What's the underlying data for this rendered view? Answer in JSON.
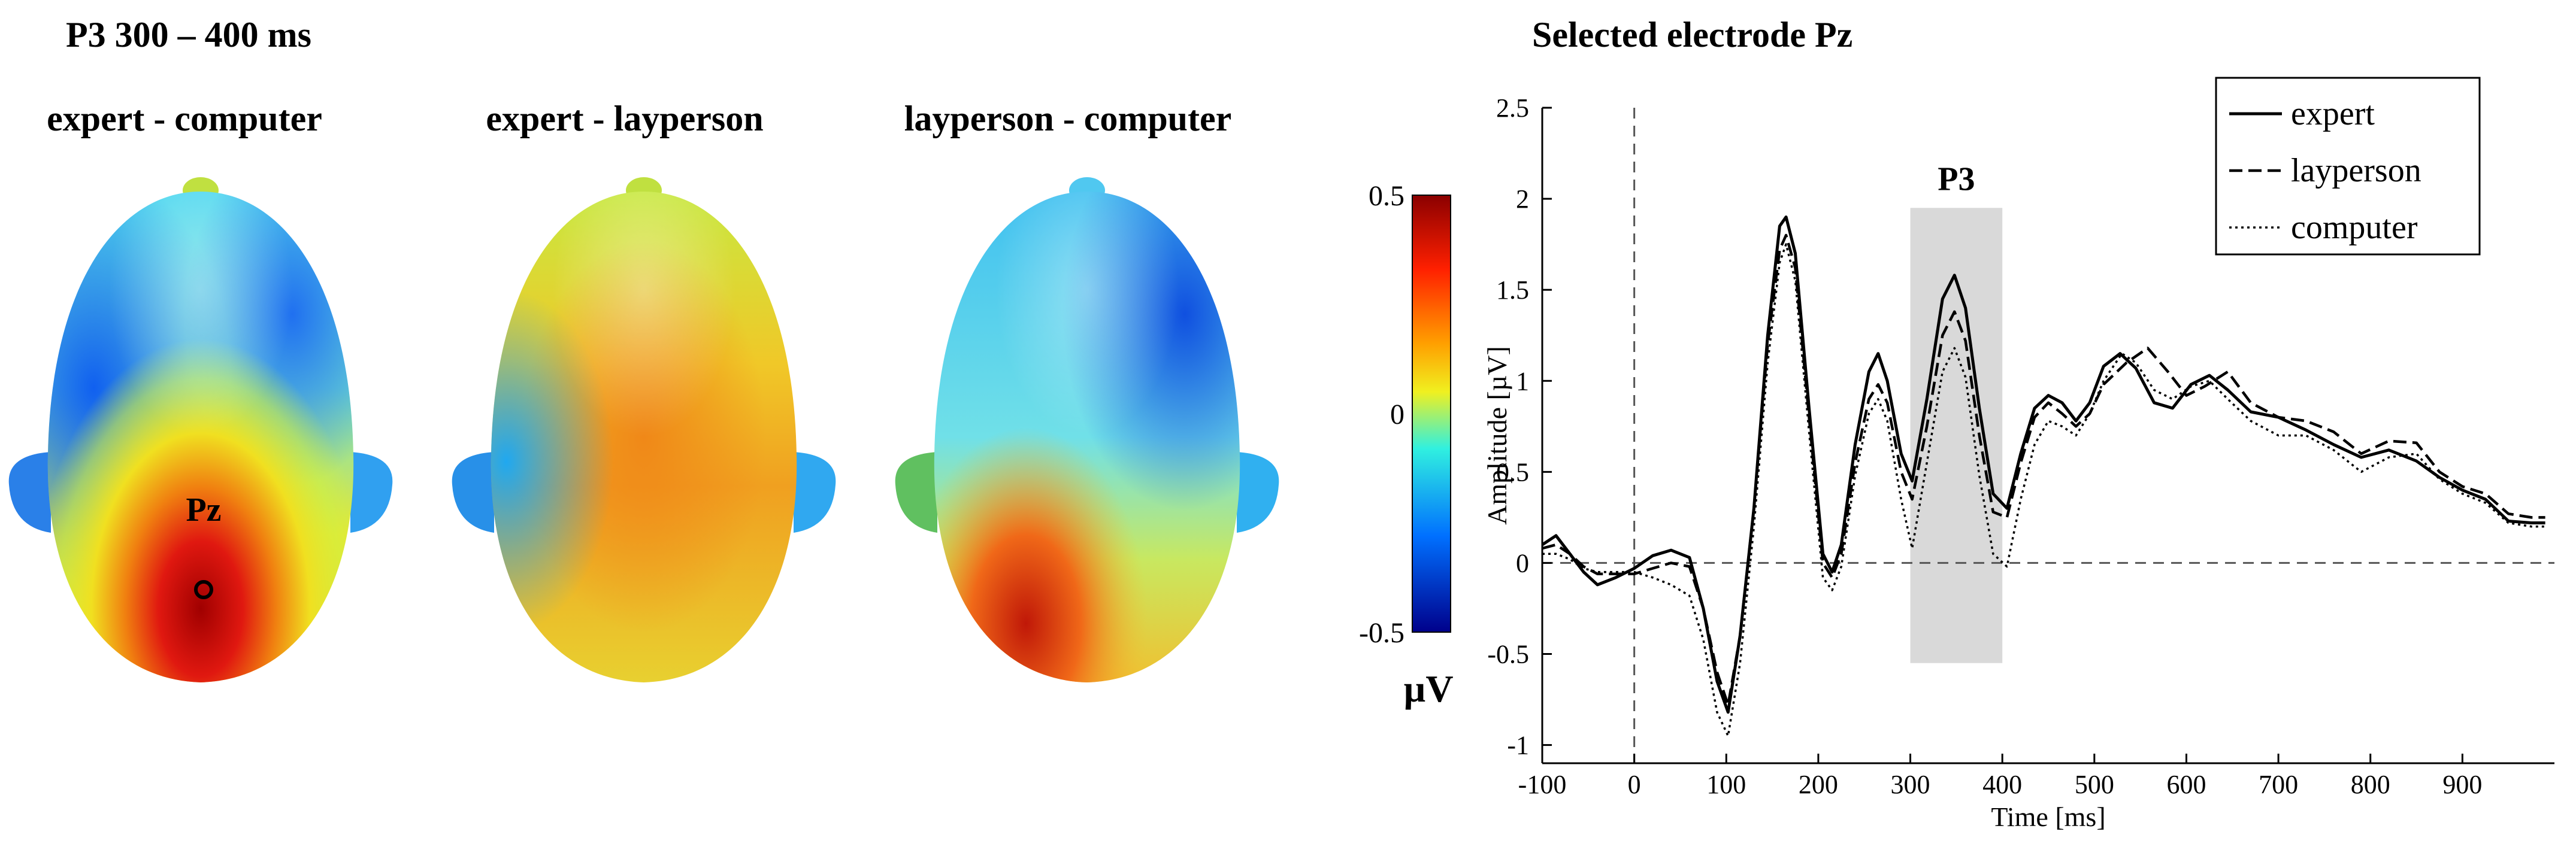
{
  "left_panel": {
    "title": "P3 300 – 400 ms",
    "maps": [
      {
        "label": "expert - computer"
      },
      {
        "label": "expert - layperson"
      },
      {
        "label": "layperson - computer"
      }
    ],
    "electrode_label": "Pz",
    "colorbar": {
      "ticks": [
        "0.5",
        "0",
        "-0.5"
      ],
      "unit": "µV",
      "colors": [
        "#8b0000",
        "#ff2000",
        "#ffa000",
        "#f0f020",
        "#30f0e0",
        "#0070ff",
        "#00008b"
      ]
    }
  },
  "chart_data": {
    "type": "line",
    "title": "Selected electrode Pz",
    "xlabel": "Time [ms]",
    "ylabel": "Amplitude [µV]",
    "xlim": [
      -100,
      1000
    ],
    "ylim": [
      -1.1,
      2.5
    ],
    "xticks": [
      -100,
      0,
      100,
      200,
      300,
      400,
      500,
      600,
      700,
      800,
      900
    ],
    "xtick_labels": [
      "-100",
      "0",
      "100",
      "200",
      "300",
      "400",
      "500",
      "600",
      "700",
      "800",
      "900"
    ],
    "yticks": [
      -1,
      -0.5,
      0,
      0.5,
      1,
      1.5,
      2,
      2.5
    ],
    "ytick_labels": [
      "-1",
      "-0.5",
      "0",
      "0.5",
      "1",
      "1.5",
      "2",
      "2.5"
    ],
    "shaded_window": {
      "label": "P3",
      "start": 300,
      "end": 400,
      "y_from": -0.55,
      "y_to": 1.95
    },
    "legend_position": "top-right",
    "series": [
      {
        "name": "expert",
        "style": "solid",
        "points": [
          [
            -100,
            0.1
          ],
          [
            -85,
            0.15
          ],
          [
            -70,
            0.05
          ],
          [
            -55,
            -0.05
          ],
          [
            -40,
            -0.12
          ],
          [
            -20,
            -0.08
          ],
          [
            0,
            -0.03
          ],
          [
            20,
            0.04
          ],
          [
            40,
            0.07
          ],
          [
            60,
            0.03
          ],
          [
            75,
            -0.25
          ],
          [
            90,
            -0.65
          ],
          [
            102,
            -0.82
          ],
          [
            115,
            -0.4
          ],
          [
            130,
            0.3
          ],
          [
            145,
            1.25
          ],
          [
            158,
            1.85
          ],
          [
            165,
            1.9
          ],
          [
            175,
            1.7
          ],
          [
            190,
            0.85
          ],
          [
            205,
            0.05
          ],
          [
            215,
            -0.05
          ],
          [
            225,
            0.1
          ],
          [
            240,
            0.65
          ],
          [
            255,
            1.05
          ],
          [
            265,
            1.15
          ],
          [
            275,
            1.0
          ],
          [
            290,
            0.6
          ],
          [
            302,
            0.45
          ],
          [
            318,
            0.9
          ],
          [
            335,
            1.45
          ],
          [
            348,
            1.58
          ],
          [
            360,
            1.4
          ],
          [
            375,
            0.85
          ],
          [
            390,
            0.38
          ],
          [
            405,
            0.3
          ],
          [
            420,
            0.6
          ],
          [
            435,
            0.85
          ],
          [
            450,
            0.92
          ],
          [
            465,
            0.88
          ],
          [
            480,
            0.78
          ],
          [
            495,
            0.88
          ],
          [
            510,
            1.08
          ],
          [
            528,
            1.15
          ],
          [
            545,
            1.07
          ],
          [
            565,
            0.88
          ],
          [
            585,
            0.85
          ],
          [
            605,
            0.98
          ],
          [
            625,
            1.03
          ],
          [
            645,
            0.95
          ],
          [
            670,
            0.83
          ],
          [
            700,
            0.8
          ],
          [
            730,
            0.73
          ],
          [
            760,
            0.65
          ],
          [
            790,
            0.58
          ],
          [
            820,
            0.62
          ],
          [
            850,
            0.56
          ],
          [
            875,
            0.47
          ],
          [
            900,
            0.4
          ],
          [
            925,
            0.35
          ],
          [
            950,
            0.23
          ],
          [
            975,
            0.22
          ],
          [
            990,
            0.22
          ]
        ]
      },
      {
        "name": "layperson",
        "style": "dashed",
        "points": [
          [
            -100,
            0.08
          ],
          [
            -85,
            0.1
          ],
          [
            -70,
            0.05
          ],
          [
            -55,
            -0.02
          ],
          [
            -40,
            -0.06
          ],
          [
            -20,
            -0.06
          ],
          [
            0,
            -0.06
          ],
          [
            20,
            -0.03
          ],
          [
            40,
            0.0
          ],
          [
            60,
            -0.02
          ],
          [
            75,
            -0.25
          ],
          [
            90,
            -0.6
          ],
          [
            102,
            -0.78
          ],
          [
            115,
            -0.4
          ],
          [
            130,
            0.3
          ],
          [
            145,
            1.2
          ],
          [
            158,
            1.72
          ],
          [
            165,
            1.8
          ],
          [
            175,
            1.62
          ],
          [
            190,
            0.8
          ],
          [
            205,
            0.0
          ],
          [
            215,
            -0.08
          ],
          [
            225,
            0.05
          ],
          [
            240,
            0.55
          ],
          [
            255,
            0.9
          ],
          [
            265,
            0.98
          ],
          [
            275,
            0.88
          ],
          [
            290,
            0.5
          ],
          [
            302,
            0.35
          ],
          [
            318,
            0.75
          ],
          [
            335,
            1.25
          ],
          [
            348,
            1.38
          ],
          [
            360,
            1.22
          ],
          [
            375,
            0.7
          ],
          [
            390,
            0.28
          ],
          [
            405,
            0.25
          ],
          [
            420,
            0.55
          ],
          [
            435,
            0.8
          ],
          [
            450,
            0.88
          ],
          [
            465,
            0.82
          ],
          [
            480,
            0.75
          ],
          [
            495,
            0.82
          ],
          [
            510,
            0.98
          ],
          [
            535,
            1.1
          ],
          [
            558,
            1.18
          ],
          [
            580,
            1.05
          ],
          [
            600,
            0.92
          ],
          [
            620,
            0.97
          ],
          [
            645,
            1.05
          ],
          [
            670,
            0.88
          ],
          [
            700,
            0.8
          ],
          [
            730,
            0.78
          ],
          [
            760,
            0.72
          ],
          [
            790,
            0.6
          ],
          [
            820,
            0.67
          ],
          [
            850,
            0.66
          ],
          [
            875,
            0.5
          ],
          [
            900,
            0.42
          ],
          [
            925,
            0.38
          ],
          [
            950,
            0.27
          ],
          [
            975,
            0.25
          ],
          [
            990,
            0.25
          ]
        ]
      },
      {
        "name": "computer",
        "style": "dotted",
        "points": [
          [
            -100,
            0.05
          ],
          [
            -85,
            0.05
          ],
          [
            -70,
            0.02
          ],
          [
            -55,
            -0.03
          ],
          [
            -40,
            -0.05
          ],
          [
            -20,
            -0.05
          ],
          [
            0,
            -0.05
          ],
          [
            20,
            -0.08
          ],
          [
            40,
            -0.12
          ],
          [
            60,
            -0.18
          ],
          [
            75,
            -0.42
          ],
          [
            90,
            -0.82
          ],
          [
            102,
            -0.95
          ],
          [
            115,
            -0.55
          ],
          [
            130,
            0.2
          ],
          [
            145,
            1.1
          ],
          [
            158,
            1.65
          ],
          [
            165,
            1.75
          ],
          [
            175,
            1.55
          ],
          [
            190,
            0.72
          ],
          [
            205,
            -0.08
          ],
          [
            215,
            -0.15
          ],
          [
            225,
            -0.02
          ],
          [
            240,
            0.48
          ],
          [
            255,
            0.82
          ],
          [
            265,
            0.9
          ],
          [
            275,
            0.78
          ],
          [
            290,
            0.35
          ],
          [
            302,
            0.08
          ],
          [
            318,
            0.55
          ],
          [
            335,
            1.05
          ],
          [
            348,
            1.18
          ],
          [
            360,
            1.02
          ],
          [
            375,
            0.48
          ],
          [
            390,
            0.05
          ],
          [
            405,
            -0.02
          ],
          [
            420,
            0.35
          ],
          [
            435,
            0.65
          ],
          [
            450,
            0.78
          ],
          [
            465,
            0.75
          ],
          [
            480,
            0.7
          ],
          [
            495,
            0.82
          ],
          [
            510,
            1.0
          ],
          [
            530,
            1.15
          ],
          [
            545,
            1.1
          ],
          [
            565,
            0.95
          ],
          [
            585,
            0.9
          ],
          [
            605,
            0.97
          ],
          [
            625,
            1.0
          ],
          [
            645,
            0.9
          ],
          [
            670,
            0.78
          ],
          [
            700,
            0.7
          ],
          [
            730,
            0.7
          ],
          [
            760,
            0.62
          ],
          [
            790,
            0.5
          ],
          [
            820,
            0.58
          ],
          [
            850,
            0.6
          ],
          [
            875,
            0.46
          ],
          [
            900,
            0.38
          ],
          [
            925,
            0.33
          ],
          [
            950,
            0.22
          ],
          [
            975,
            0.2
          ],
          [
            990,
            0.2
          ]
        ]
      }
    ]
  }
}
